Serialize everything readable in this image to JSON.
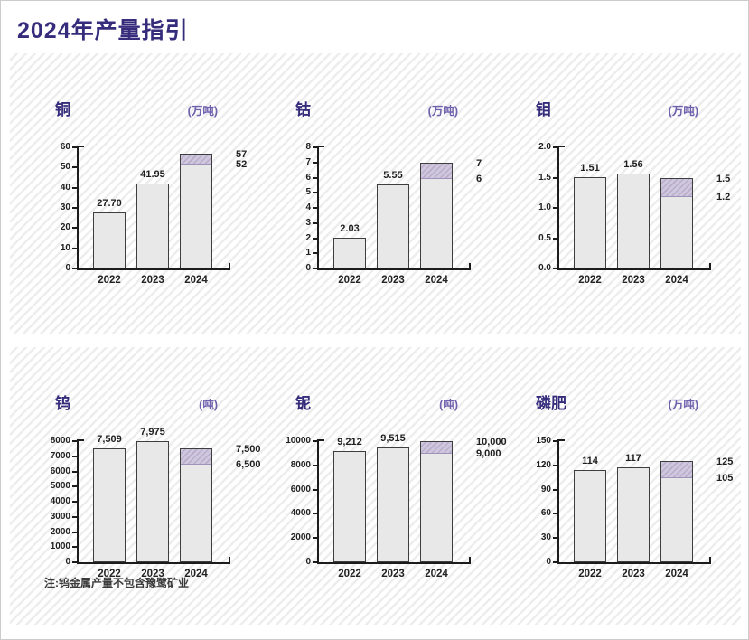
{
  "page": {
    "title": "2024年产量指引",
    "note": "注:钨金属产量不包含豫鹭矿业"
  },
  "colors": {
    "title": "#352d7c",
    "unit": "#6f61ad",
    "bar_fill": "#e9e8e8",
    "bar_border": "#3e3e3e",
    "guidance_band_fill": "#cfc7dd",
    "guidance_band_stripe": "#b9adcb",
    "axis": "#1c1c1c",
    "label_text": "#1f1f1f",
    "panel_hatch_line": "#ededed"
  },
  "chart_data": [
    {
      "type": "bar",
      "title": "铜",
      "unit": "(万吨)",
      "ylim": [
        0,
        60
      ],
      "yticks": [
        "0",
        "10",
        "20",
        "30",
        "40",
        "50",
        "60"
      ],
      "categories": [
        "2022",
        "2023",
        "2024"
      ],
      "bars": [
        {
          "category": "2022",
          "value": 27.7,
          "label": "27.70"
        },
        {
          "category": "2023",
          "value": 41.95,
          "label": "41.95"
        },
        {
          "category": "2024",
          "range": [
            52,
            57
          ],
          "low_label": "52",
          "high_label": "57"
        }
      ]
    },
    {
      "type": "bar",
      "title": "钴",
      "unit": "(万吨)",
      "ylim": [
        0,
        8
      ],
      "yticks": [
        "0",
        "1",
        "2",
        "3",
        "4",
        "5",
        "6",
        "7",
        "8"
      ],
      "categories": [
        "2022",
        "2023",
        "2024"
      ],
      "bars": [
        {
          "category": "2022",
          "value": 2.03,
          "label": "2.03"
        },
        {
          "category": "2023",
          "value": 5.55,
          "label": "5.55"
        },
        {
          "category": "2024",
          "range": [
            6,
            7
          ],
          "low_label": "6",
          "high_label": "7"
        }
      ]
    },
    {
      "type": "bar",
      "title": "钼",
      "unit": "(万吨)",
      "ylim": [
        0,
        2.0
      ],
      "yticks": [
        "0.0",
        "0.5",
        "1.0",
        "1.5",
        "2.0"
      ],
      "categories": [
        "2022",
        "2023",
        "2024"
      ],
      "bars": [
        {
          "category": "2022",
          "value": 1.51,
          "label": "1.51"
        },
        {
          "category": "2023",
          "value": 1.56,
          "label": "1.56"
        },
        {
          "category": "2024",
          "range": [
            1.2,
            1.5
          ],
          "low_label": "1.2",
          "high_label": "1.5"
        }
      ]
    },
    {
      "type": "bar",
      "title": "钨",
      "unit": "(吨)",
      "ylim": [
        0,
        8000
      ],
      "yticks": [
        "0",
        "1000",
        "2000",
        "3000",
        "4000",
        "5000",
        "6000",
        "7000",
        "8000"
      ],
      "categories": [
        "2022",
        "2023",
        "2024"
      ],
      "bars": [
        {
          "category": "2022",
          "value": 7509,
          "label": "7,509"
        },
        {
          "category": "2023",
          "value": 7975,
          "label": "7,975"
        },
        {
          "category": "2024",
          "range": [
            6500,
            7500
          ],
          "low_label": "6,500",
          "high_label": "7,500"
        }
      ]
    },
    {
      "type": "bar",
      "title": "铌",
      "unit": "(吨)",
      "ylim": [
        0,
        10000
      ],
      "yticks": [
        "0",
        "2000",
        "4000",
        "6000",
        "8000",
        "10000"
      ],
      "categories": [
        "2022",
        "2023",
        "2024"
      ],
      "bars": [
        {
          "category": "2022",
          "value": 9212,
          "label": "9,212"
        },
        {
          "category": "2023",
          "value": 9515,
          "label": "9,515"
        },
        {
          "category": "2024",
          "range": [
            9000,
            10000
          ],
          "low_label": "9,000",
          "high_label": "10,000"
        }
      ]
    },
    {
      "type": "bar",
      "title": "磷肥",
      "unit": "(万吨)",
      "ylim": [
        0,
        150
      ],
      "yticks": [
        "0",
        "30",
        "60",
        "90",
        "120",
        "150"
      ],
      "categories": [
        "2022",
        "2023",
        "2024"
      ],
      "bars": [
        {
          "category": "2022",
          "value": 114,
          "label": "114"
        },
        {
          "category": "2023",
          "value": 117,
          "label": "117"
        },
        {
          "category": "2024",
          "range": [
            105,
            125
          ],
          "low_label": "105",
          "high_label": "125"
        }
      ]
    }
  ]
}
